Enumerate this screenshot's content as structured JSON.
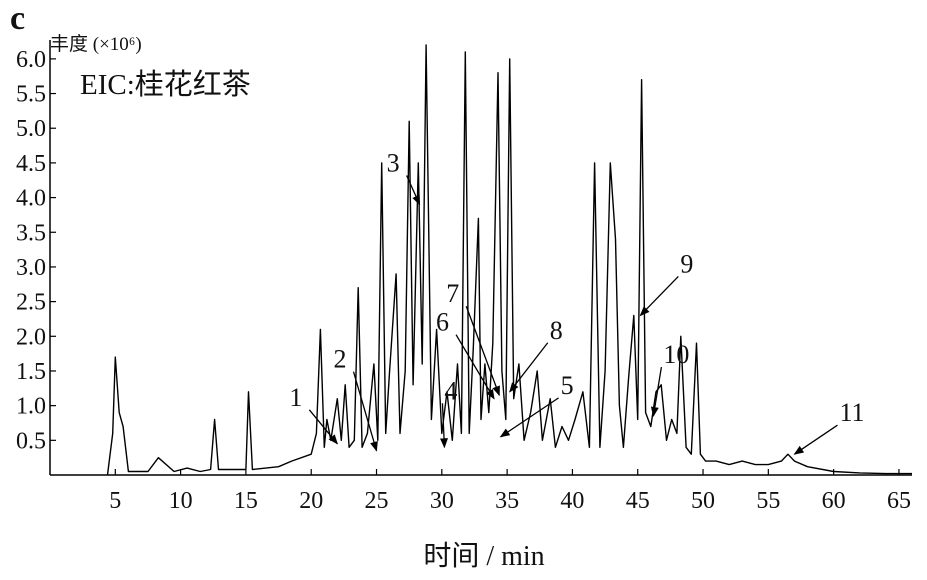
{
  "panel_label": "c",
  "chart_data": {
    "type": "line",
    "ylabel": "丰度 (×10⁶)",
    "xlabel": "时间 / min",
    "annotation": "EIC:桂花红茶",
    "xlim": [
      0,
      66
    ],
    "ylim": [
      0,
      6.2
    ],
    "x_ticks": [
      5,
      10,
      15,
      20,
      25,
      30,
      35,
      40,
      45,
      50,
      55,
      60,
      65
    ],
    "y_ticks": [
      0.5,
      1.0,
      1.5,
      2.0,
      2.5,
      3.0,
      3.5,
      4.0,
      4.5,
      5.0,
      5.5,
      6.0
    ],
    "y_tick_labels": [
      "0.5",
      "1.0",
      "1.5",
      "2.0",
      "2.5",
      "3.0",
      "3.5",
      "4.0",
      "4.5",
      "5.0",
      "5.5",
      "6.0"
    ],
    "grid": false,
    "series": [
      {
        "x": [
          4.4,
          4.8,
          5.0,
          5.3,
          5.6,
          6.0,
          7.5,
          8.3,
          9.5,
          10.5,
          11.5,
          12.3,
          12.6,
          12.9,
          14.5,
          15.0,
          15.2,
          15.5,
          17.5,
          18.5,
          20.0,
          20.4,
          20.7,
          21.0,
          21.2,
          21.5,
          22.0,
          22.3,
          22.6,
          22.9,
          23.3,
          23.6,
          23.9,
          24.3,
          24.8,
          25.1,
          25.4,
          25.7,
          26.0,
          26.5,
          26.8,
          27.2,
          27.5,
          27.8,
          28.2,
          28.5,
          28.8,
          29.2,
          29.6,
          30.0,
          30.4,
          30.8,
          31.2,
          31.5,
          31.8,
          32.1,
          32.4,
          32.8,
          33.0,
          33.3,
          33.6,
          33.9,
          34.3,
          34.6,
          34.9,
          35.2,
          35.5,
          35.9,
          36.3,
          36.8,
          37.3,
          37.7,
          38.3,
          38.7,
          39.2,
          39.7,
          40.2,
          40.8,
          41.3,
          41.7,
          42.1,
          42.5,
          42.9,
          43.3,
          43.6,
          43.9,
          44.3,
          44.7,
          45.0,
          45.3,
          45.6,
          46.0,
          46.4,
          46.8,
          47.2,
          47.6,
          48.0,
          48.3,
          48.7,
          49.1,
          49.5,
          49.8,
          50.2,
          51.0,
          52.0,
          53.0,
          54.0,
          55.0,
          56.0,
          56.5,
          57.0,
          58.0,
          60.0,
          62.0,
          64.0,
          65.0,
          66.0
        ],
        "y": [
          0.0,
          0.6,
          1.7,
          0.9,
          0.7,
          0.05,
          0.05,
          0.25,
          0.05,
          0.1,
          0.05,
          0.08,
          0.8,
          0.08,
          0.08,
          0.08,
          1.2,
          0.08,
          0.12,
          0.2,
          0.3,
          0.6,
          2.1,
          0.4,
          0.8,
          0.5,
          1.1,
          0.5,
          1.3,
          0.4,
          0.5,
          2.7,
          0.4,
          0.6,
          1.6,
          0.5,
          4.5,
          0.6,
          1.5,
          2.9,
          0.6,
          1.5,
          5.1,
          1.3,
          4.5,
          1.6,
          6.2,
          0.8,
          2.1,
          0.6,
          1.2,
          0.5,
          1.6,
          0.6,
          6.1,
          0.6,
          1.8,
          3.7,
          0.8,
          1.6,
          0.9,
          1.9,
          5.8,
          1.5,
          0.8,
          6.0,
          1.1,
          1.6,
          0.5,
          0.9,
          1.5,
          0.5,
          1.1,
          0.4,
          0.7,
          0.5,
          0.8,
          1.2,
          0.4,
          4.5,
          0.4,
          1.5,
          4.5,
          3.4,
          1.0,
          0.4,
          1.4,
          2.3,
          0.8,
          5.7,
          0.9,
          0.7,
          1.2,
          1.3,
          0.5,
          0.8,
          0.6,
          2.0,
          0.4,
          0.3,
          1.9,
          0.3,
          0.2,
          0.2,
          0.15,
          0.2,
          0.15,
          0.15,
          0.2,
          0.3,
          0.2,
          0.12,
          0.05,
          0.03,
          0.02,
          0.02,
          0.02
        ]
      }
    ],
    "peak_labels": [
      {
        "label": "1",
        "arrow_x": 22.0,
        "arrow_y": 0.45
      },
      {
        "label": "2",
        "arrow_x": 25.0,
        "arrow_y": 0.35
      },
      {
        "label": "3",
        "arrow_x": 28.3,
        "arrow_y": 3.9
      },
      {
        "label": "4",
        "arrow_x": 30.2,
        "arrow_y": 0.4
      },
      {
        "label": "5",
        "arrow_x": 34.5,
        "arrow_y": 0.55
      },
      {
        "label": "6",
        "arrow_x": 34.0,
        "arrow_y": 1.1
      },
      {
        "label": "7",
        "arrow_x": 34.4,
        "arrow_y": 1.15
      },
      {
        "label": "8",
        "arrow_x": 35.2,
        "arrow_y": 1.2
      },
      {
        "label": "9",
        "arrow_x": 45.2,
        "arrow_y": 2.3
      },
      {
        "label": "10",
        "arrow_x": 46.2,
        "arrow_y": 0.85
      },
      {
        "label": "11",
        "arrow_x": 57.0,
        "arrow_y": 0.3
      }
    ]
  }
}
